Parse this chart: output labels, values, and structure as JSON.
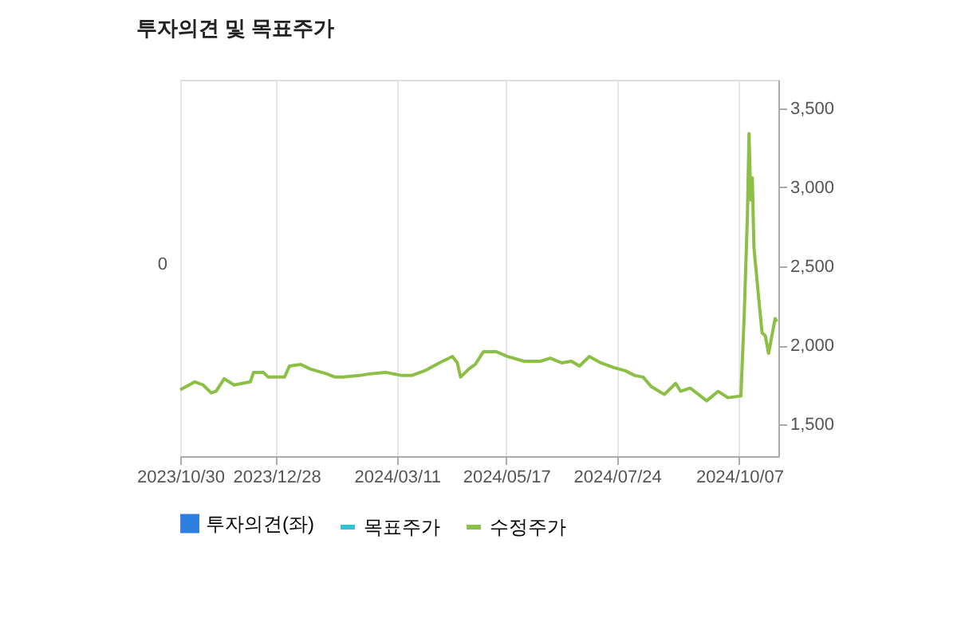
{
  "chart_data": {
    "type": "line",
    "title": "투자의견 및 목표주가",
    "x": [
      "2023-10-30",
      "2023-11-08",
      "2023-11-13",
      "2023-11-18",
      "2023-11-21",
      "2023-11-26",
      "2023-12-02",
      "2023-12-12",
      "2023-12-14",
      "2023-12-20",
      "2023-12-23",
      "2024-01-02",
      "2024-01-05",
      "2024-01-12",
      "2024-01-18",
      "2024-01-28",
      "2024-02-02",
      "2024-02-07",
      "2024-02-17",
      "2024-02-23",
      "2024-03-04",
      "2024-03-14",
      "2024-03-20",
      "2024-03-28",
      "2024-04-06",
      "2024-04-14",
      "2024-04-17",
      "2024-04-19",
      "2024-04-24",
      "2024-04-28",
      "2024-05-03",
      "2024-05-11",
      "2024-05-18",
      "2024-05-28",
      "2024-06-07",
      "2024-06-13",
      "2024-06-20",
      "2024-06-26",
      "2024-07-01",
      "2024-07-07",
      "2024-07-14",
      "2024-07-22",
      "2024-07-29",
      "2024-08-04",
      "2024-08-09",
      "2024-08-14",
      "2024-08-22",
      "2024-08-29",
      "2024-09-01",
      "2024-09-07",
      "2024-09-12",
      "2024-09-17",
      "2024-09-24",
      "2024-09-30",
      "2024-10-08",
      "2024-10-10",
      "2024-10-12",
      "2024-10-13",
      "2024-10-14",
      "2024-10-15",
      "2024-10-16",
      "2024-10-19",
      "2024-10-21",
      "2024-10-23",
      "2024-10-25",
      "2024-10-27",
      "2024-10-29",
      "2024-10-30"
    ],
    "series": [
      {
        "name": "투자의견(좌)",
        "type": "bar",
        "color": "#2e7fe0",
        "values": [
          null,
          null,
          null,
          null,
          null,
          null,
          null,
          null,
          null,
          null,
          null,
          null,
          null,
          null,
          null,
          null,
          null,
          null,
          null,
          null,
          null,
          null,
          null,
          null,
          null,
          null,
          null,
          null,
          null,
          null,
          null,
          null,
          null,
          null,
          null,
          null,
          null,
          null,
          null,
          null,
          null,
          null,
          null,
          null,
          null,
          null,
          null,
          null,
          null,
          null,
          null,
          null,
          null,
          null,
          null,
          null,
          null,
          null,
          null,
          null,
          null,
          null,
          null,
          null,
          null,
          null,
          null,
          null
        ]
      },
      {
        "name": "목표주가",
        "type": "line",
        "color": "#2ec4d6",
        "values": [
          null,
          null,
          null,
          null,
          null,
          null,
          null,
          null,
          null,
          null,
          null,
          null,
          null,
          null,
          null,
          null,
          null,
          null,
          null,
          null,
          null,
          null,
          null,
          null,
          null,
          null,
          null,
          null,
          null,
          null,
          null,
          null,
          null,
          null,
          null,
          null,
          null,
          null,
          null,
          null,
          null,
          null,
          null,
          null,
          null,
          null,
          null,
          null,
          null,
          null,
          null,
          null,
          null,
          null,
          null,
          null,
          null,
          null,
          null,
          null,
          null,
          null,
          null,
          null,
          null,
          null,
          null,
          null
        ]
      },
      {
        "name": "수정주가",
        "color": "#8cbf45",
        "values": [
          1720,
          1770,
          1750,
          1700,
          1710,
          1790,
          1750,
          1770,
          1830,
          1830,
          1800,
          1800,
          1870,
          1880,
          1850,
          1820,
          1800,
          1800,
          1810,
          1820,
          1830,
          1810,
          1810,
          1840,
          1890,
          1930,
          1890,
          1800,
          1850,
          1880,
          1960,
          1960,
          1930,
          1900,
          1900,
          1920,
          1890,
          1900,
          1870,
          1930,
          1890,
          1860,
          1840,
          1810,
          1800,
          1740,
          1690,
          1760,
          1710,
          1730,
          1690,
          1650,
          1710,
          1670,
          1680,
          2180,
          2820,
          3340,
          2920,
          3060,
          2620,
          2290,
          2080,
          2060,
          1950,
          2060,
          2170,
          2150
        ]
      }
    ],
    "xlim": [
      "2023-10-30",
      "2024-10-31"
    ],
    "xticks": [
      {
        "value": "2023-10-30",
        "label": "2023/10/30"
      },
      {
        "value": "2023-12-28",
        "label": "2023/12/28"
      },
      {
        "value": "2024-03-11",
        "label": "2024/03/11"
      },
      {
        "value": "2024-05-17",
        "label": "2024/05/17"
      },
      {
        "value": "2024-07-24",
        "label": "2024/07/24"
      },
      {
        "value": "2024-10-07",
        "label": "2024/10/07"
      }
    ],
    "ylim": [
      1300,
      3680
    ],
    "yticks": [
      {
        "value": 1500,
        "label": "1,500"
      },
      {
        "value": 2000,
        "label": "2,000"
      },
      {
        "value": 2500,
        "label": "2,500"
      },
      {
        "value": 3000,
        "label": "3,000"
      },
      {
        "value": 3500,
        "label": "3,500"
      }
    ],
    "annotations": [
      "0"
    ],
    "grid": "x",
    "legend": "bottom"
  }
}
